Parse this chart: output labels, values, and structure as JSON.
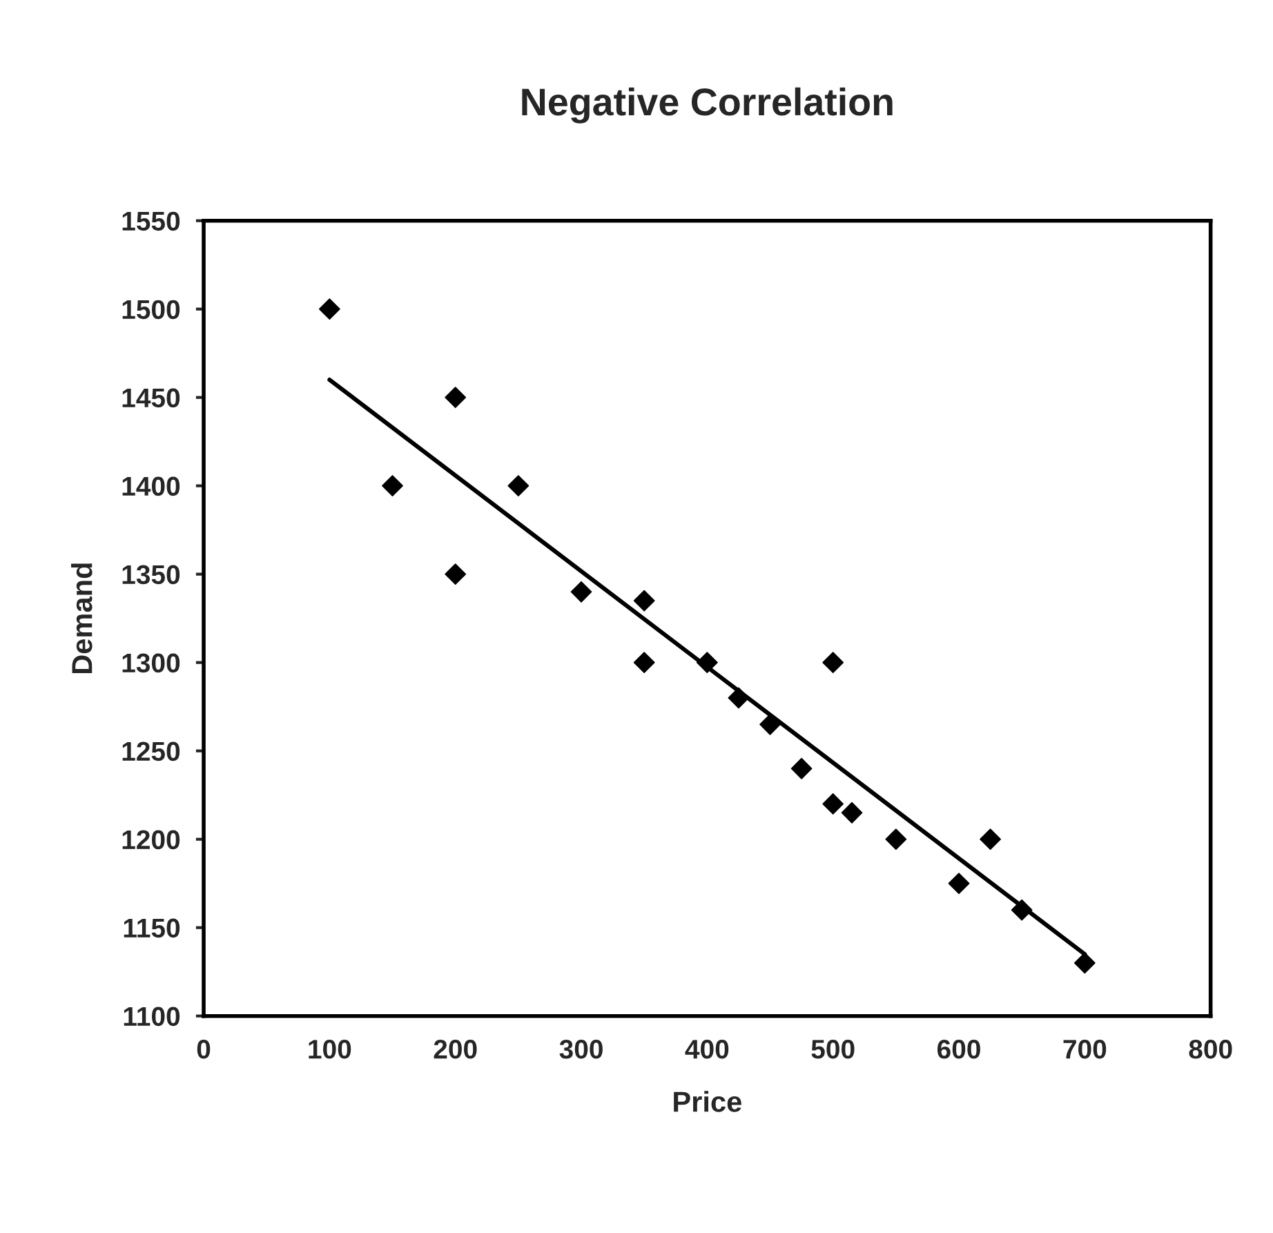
{
  "chart_data": {
    "type": "scatter",
    "title": "Negative Correlation",
    "xlabel": "Price",
    "ylabel": "Demand",
    "xlim": [
      0,
      800
    ],
    "xticks": [
      0,
      100,
      200,
      300,
      400,
      500,
      600,
      700,
      800
    ],
    "ylim": [
      1100,
      1550
    ],
    "yticks": [
      1100,
      1150,
      1200,
      1250,
      1300,
      1350,
      1400,
      1450,
      1500,
      1550
    ],
    "grid": false,
    "legend": false,
    "marker": "diamond",
    "series": [
      {
        "color": "#000000",
        "x": [
          100,
          150,
          200,
          200,
          250,
          300,
          350,
          350,
          400,
          425,
          450,
          475,
          500,
          500,
          515,
          550,
          600,
          625,
          650,
          700
        ],
        "values": [
          1500,
          1400,
          1450,
          1350,
          1400,
          1340,
          1335,
          1300,
          1300,
          1280,
          1265,
          1240,
          1300,
          1220,
          1215,
          1200,
          1175,
          1200,
          1160,
          1130
        ]
      },
      {
        "type": "line",
        "color": "#000000",
        "line_style": "solid",
        "marker": "none",
        "x": [
          100,
          700
        ],
        "values": [
          1460,
          1135
        ]
      }
    ]
  }
}
